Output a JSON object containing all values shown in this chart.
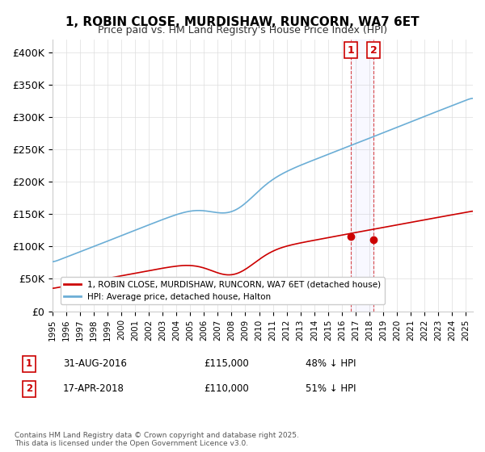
{
  "title": "1, ROBIN CLOSE, MURDISHAW, RUNCORN, WA7 6ET",
  "subtitle": "Price paid vs. HM Land Registry's House Price Index (HPI)",
  "ylim": [
    0,
    420000
  ],
  "yticks": [
    0,
    50000,
    100000,
    150000,
    200000,
    250000,
    300000,
    350000,
    400000
  ],
  "ytick_labels": [
    "£0",
    "£50K",
    "£100K",
    "£150K",
    "£200K",
    "£250K",
    "£300K",
    "£350K",
    "£400K"
  ],
  "hpi_color": "#6baed6",
  "price_color": "#cc0000",
  "marker1_date": 2016.67,
  "marker1_price": 115000,
  "marker1_label": "31-AUG-2016",
  "marker1_amount": "£115,000",
  "marker1_pct": "48% ↓ HPI",
  "marker2_date": 2018.29,
  "marker2_price": 110000,
  "marker2_label": "17-APR-2018",
  "marker2_amount": "£110,000",
  "marker2_pct": "51% ↓ HPI",
  "legend_label1": "1, ROBIN CLOSE, MURDISHAW, RUNCORN, WA7 6ET (detached house)",
  "legend_label2": "HPI: Average price, detached house, Halton",
  "footnote": "Contains HM Land Registry data © Crown copyright and database right 2025.\nThis data is licensed under the Open Government Licence v3.0.",
  "xmin": 1995,
  "xmax": 2025.5
}
